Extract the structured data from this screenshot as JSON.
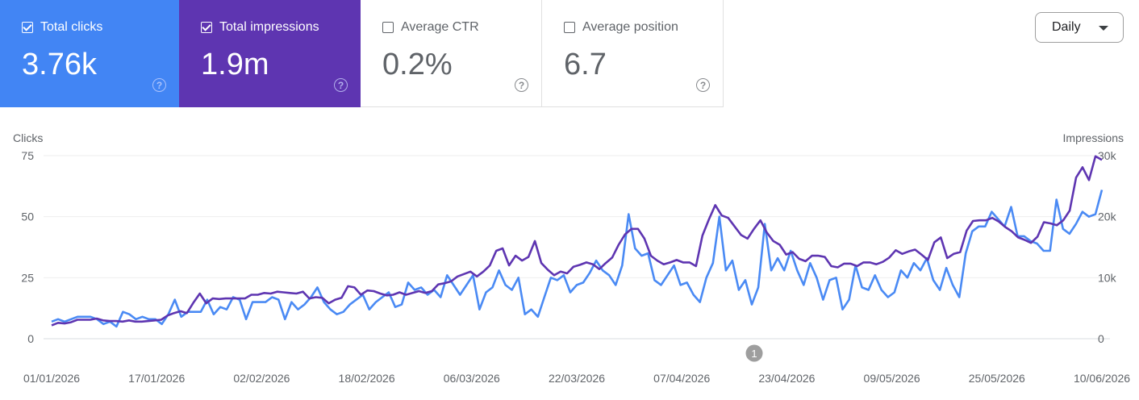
{
  "cards": [
    {
      "label": "Total clicks",
      "value": "3.76k",
      "checked": true
    },
    {
      "label": "Total impressions",
      "value": "1.9m",
      "checked": true
    },
    {
      "label": "Average CTR",
      "value": "0.2%",
      "checked": false
    },
    {
      "label": "Average position",
      "value": "6.7",
      "checked": false
    }
  ],
  "granularity": "Daily",
  "colors": {
    "clicks": "#4a8af4",
    "impressions": "#5e35b1"
  },
  "annotation_label": "1",
  "chart_data": {
    "type": "line",
    "x_start": "2026-01-01",
    "x_end": "2026-06-12",
    "x_tick_labels": [
      "01/01/2026",
      "17/01/2026",
      "02/02/2026",
      "18/02/2026",
      "06/03/2026",
      "22/03/2026",
      "07/04/2026",
      "23/04/2026",
      "09/05/2026",
      "25/05/2026",
      "10/06/2026"
    ],
    "y_left": {
      "label": "Clicks",
      "ylim": [
        0,
        75
      ],
      "ticks": [
        "0",
        "25",
        "50",
        "75"
      ]
    },
    "y_right": {
      "label": "Impressions",
      "ylim": [
        0,
        30000
      ],
      "ticks": [
        "0",
        "10k",
        "20k",
        "30k"
      ]
    },
    "grid": true,
    "series": [
      {
        "axis": "left",
        "values": [
          7,
          8,
          7,
          8,
          9,
          9,
          9,
          8,
          6,
          7,
          5,
          11,
          10,
          8,
          9,
          8,
          8,
          6,
          10,
          16,
          9,
          11,
          11,
          11,
          16,
          10,
          13,
          12,
          17,
          16,
          8,
          15,
          15,
          15,
          17,
          16,
          8,
          15,
          12,
          14,
          17,
          21,
          15,
          12,
          10,
          11,
          14,
          16,
          18,
          12,
          15,
          17,
          19,
          13,
          14,
          23,
          20,
          21,
          18,
          20,
          17,
          26,
          22,
          18,
          22,
          26,
          12,
          19,
          21,
          28,
          22,
          20,
          25,
          10,
          12,
          9,
          17,
          25,
          24,
          26,
          19,
          22,
          23,
          27,
          32,
          28,
          26,
          22,
          30,
          51,
          37,
          34,
          35,
          24,
          22,
          26,
          30,
          22,
          23,
          18,
          15,
          25,
          31,
          50,
          28,
          32,
          20,
          24,
          14,
          21,
          47,
          28,
          33,
          28,
          36,
          28,
          22,
          31,
          25,
          16,
          24,
          25,
          12,
          16,
          30,
          21,
          20,
          26,
          20,
          17,
          19,
          28,
          25,
          31,
          28,
          33,
          24,
          20,
          29,
          22,
          17,
          35,
          44,
          46,
          46,
          52,
          49,
          46,
          54,
          42,
          42,
          40,
          39,
          36,
          36,
          57,
          45,
          43,
          47,
          52,
          50,
          51,
          61
        ]
      },
      {
        "axis": "right",
        "values": [
          2200,
          2600,
          2500,
          2700,
          3100,
          3100,
          3100,
          3300,
          3000,
          2900,
          2900,
          2800,
          3000,
          2800,
          2800,
          2900,
          3000,
          3100,
          3800,
          4200,
          4500,
          4200,
          5900,
          7400,
          5800,
          6600,
          6500,
          6600,
          6600,
          6600,
          6600,
          7200,
          7200,
          7500,
          7400,
          7700,
          7600,
          7500,
          7400,
          7700,
          6600,
          6800,
          6700,
          5800,
          6400,
          6700,
          8600,
          8400,
          7200,
          7900,
          7800,
          7400,
          7100,
          7200,
          7600,
          7200,
          7500,
          7800,
          7500,
          7800,
          8900,
          9100,
          9400,
          10200,
          10600,
          11000,
          10200,
          11000,
          12000,
          14400,
          14800,
          12000,
          13600,
          12800,
          13400,
          16000,
          12400,
          11300,
          10400,
          11000,
          10700,
          11800,
          12100,
          12500,
          12200,
          11400,
          12400,
          13300,
          15400,
          17100,
          18000,
          18000,
          16400,
          13600,
          12800,
          12200,
          12500,
          12900,
          12500,
          12500,
          11900,
          16900,
          19500,
          21900,
          20200,
          19800,
          18400,
          17000,
          16400,
          18000,
          19400,
          17400,
          16000,
          15400,
          13800,
          14200,
          13100,
          12700,
          13600,
          13600,
          13400,
          11900,
          11700,
          12300,
          12300,
          11900,
          12500,
          12500,
          12200,
          12600,
          13300,
          14500,
          13900,
          14300,
          14600,
          13800,
          12900,
          15800,
          16600,
          13200,
          13900,
          14200,
          17700,
          19300,
          19400,
          19400,
          19800,
          19200,
          18300,
          17600,
          16600,
          16200,
          15700,
          16700,
          19100,
          18900,
          18600,
          19400,
          21000,
          26400,
          28100,
          26000,
          29900,
          29300
        ]
      }
    ]
  }
}
